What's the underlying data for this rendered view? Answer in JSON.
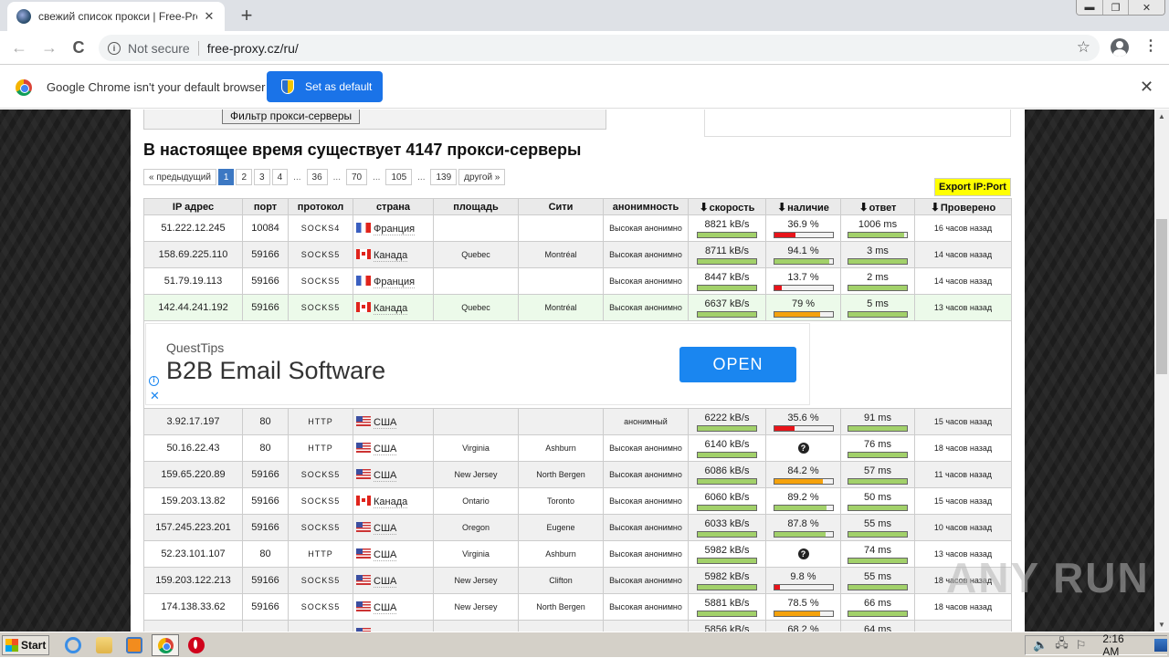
{
  "browser": {
    "tab_title": "свежий список прокси | Free-Proxy",
    "tab_close": "✕",
    "new_tab": "+",
    "window_controls": {
      "minimize": "▬",
      "restore": "❐",
      "close": "✕"
    },
    "nav": {
      "back": "←",
      "forward": "→",
      "reload": "C"
    },
    "security_label": "Not secure",
    "url": "free-proxy.cz/ru/",
    "star": "☆",
    "menu": "⋮",
    "infobar": {
      "message": "Google Chrome isn't your default browser",
      "button": "Set as default",
      "close": "✕"
    }
  },
  "page": {
    "filter_button": "Фильтр прокси-серверы",
    "title": "В настоящее время существует 4147 прокси-серверы",
    "pagination": {
      "prev": "« предыдущий",
      "items": [
        "1",
        "2",
        "3",
        "4",
        "...",
        "36",
        "...",
        "70",
        "...",
        "105",
        "...",
        "139"
      ],
      "active": "1",
      "next": "другой »"
    },
    "export_button": "Export IP:Port",
    "table": {
      "headers": [
        "IP адрес",
        "порт",
        "протокол",
        "страна",
        "площадь",
        "Сити",
        "анонимность",
        "скорость",
        "наличие",
        "ответ",
        "Проверено"
      ],
      "sort_arrow": "🡇",
      "rows": [
        {
          "ip": "51.222.12.245",
          "port": "10084",
          "protocol": "SOCKS4",
          "flag": "fr",
          "country": "Франция",
          "region": "",
          "city": "",
          "anonymity": "Высокая анонимно",
          "speed": "8821 kB/s",
          "speed_pct": 100,
          "uptime": "36.9 %",
          "uptime_pct": 36.9,
          "uptime_color": "#e8141a",
          "response": "1006 ms",
          "response_pct": 95,
          "checked": "16 часов назад",
          "style": "odd"
        },
        {
          "ip": "158.69.225.110",
          "port": "59166",
          "protocol": "SOCKS5",
          "flag": "ca",
          "country": "Канада",
          "region": "Quebec",
          "city": "Montréal",
          "anonymity": "Высокая анонимно",
          "speed": "8711 kB/s",
          "speed_pct": 100,
          "uptime": "94.1 %",
          "uptime_pct": 94.1,
          "uptime_color": "#a2d16a",
          "response": "3 ms",
          "response_pct": 100,
          "checked": "14 часов назад",
          "style": "even"
        },
        {
          "ip": "51.79.19.113",
          "port": "59166",
          "protocol": "SOCKS5",
          "flag": "fr",
          "country": "Франция",
          "region": "",
          "city": "",
          "anonymity": "Высокая анонимно",
          "speed": "8447 kB/s",
          "speed_pct": 100,
          "uptime": "13.7 %",
          "uptime_pct": 13.7,
          "uptime_color": "#e8141a",
          "response": "2 ms",
          "response_pct": 100,
          "checked": "14 часов назад",
          "style": "odd"
        },
        {
          "ip": "142.44.241.192",
          "port": "59166",
          "protocol": "SOCKS5",
          "flag": "ca",
          "country": "Канада",
          "region": "Quebec",
          "city": "Montréal",
          "anonymity": "Высокая анонимно",
          "speed": "6637 kB/s",
          "speed_pct": 100,
          "uptime": "79 %",
          "uptime_pct": 79,
          "uptime_color": "#f5a20c",
          "response": "5 ms",
          "response_pct": 100,
          "checked": "13 часов назад",
          "style": "green"
        },
        {
          "ip": "3.92.17.197",
          "port": "80",
          "protocol": "HTTP",
          "flag": "us",
          "country": "США",
          "region": "",
          "city": "",
          "anonymity": "анонимный",
          "speed": "6222 kB/s",
          "speed_pct": 100,
          "uptime": "35.6 %",
          "uptime_pct": 35.6,
          "uptime_color": "#e8141a",
          "response": "91 ms",
          "response_pct": 100,
          "checked": "15 часов назад",
          "style": "even"
        },
        {
          "ip": "50.16.22.43",
          "port": "80",
          "protocol": "HTTP",
          "flag": "us",
          "country": "США",
          "region": "Virginia",
          "city": "Ashburn",
          "anonymity": "Высокая анонимно",
          "speed": "6140 kB/s",
          "speed_pct": 100,
          "uptime": "?",
          "uptime_pct": null,
          "uptime_color": "",
          "response": "76 ms",
          "response_pct": 100,
          "checked": "18 часов назад",
          "style": "odd"
        },
        {
          "ip": "159.65.220.89",
          "port": "59166",
          "protocol": "SOCKS5",
          "flag": "us",
          "country": "США",
          "region": "New Jersey",
          "city": "North Bergen",
          "anonymity": "Высокая анонимно",
          "speed": "6086 kB/s",
          "speed_pct": 100,
          "uptime": "84.2 %",
          "uptime_pct": 84.2,
          "uptime_color": "#f5a20c",
          "response": "57 ms",
          "response_pct": 100,
          "checked": "11 часов назад",
          "style": "even"
        },
        {
          "ip": "159.203.13.82",
          "port": "59166",
          "protocol": "SOCKS5",
          "flag": "ca",
          "country": "Канада",
          "region": "Ontario",
          "city": "Toronto",
          "anonymity": "Высокая анонимно",
          "speed": "6060 kB/s",
          "speed_pct": 100,
          "uptime": "89.2 %",
          "uptime_pct": 89.2,
          "uptime_color": "#a2d16a",
          "response": "50 ms",
          "response_pct": 100,
          "checked": "15 часов назад",
          "style": "odd"
        },
        {
          "ip": "157.245.223.201",
          "port": "59166",
          "protocol": "SOCKS5",
          "flag": "us",
          "country": "США",
          "region": "Oregon",
          "city": "Eugene",
          "anonymity": "Высокая анонимно",
          "speed": "6033 kB/s",
          "speed_pct": 100,
          "uptime": "87.8 %",
          "uptime_pct": 87.8,
          "uptime_color": "#a2d16a",
          "response": "55 ms",
          "response_pct": 100,
          "checked": "10 часов назад",
          "style": "even"
        },
        {
          "ip": "52.23.101.107",
          "port": "80",
          "protocol": "HTTP",
          "flag": "us",
          "country": "США",
          "region": "Virginia",
          "city": "Ashburn",
          "anonymity": "Высокая анонимно",
          "speed": "5982 kB/s",
          "speed_pct": 100,
          "uptime": "?",
          "uptime_pct": null,
          "uptime_color": "",
          "response": "74 ms",
          "response_pct": 100,
          "checked": "13 часов назад",
          "style": "odd"
        },
        {
          "ip": "159.203.122.213",
          "port": "59166",
          "protocol": "SOCKS5",
          "flag": "us",
          "country": "США",
          "region": "New Jersey",
          "city": "Clifton",
          "anonymity": "Высокая анонимно",
          "speed": "5982 kB/s",
          "speed_pct": 100,
          "uptime": "9.8 %",
          "uptime_pct": 9.8,
          "uptime_color": "#e8141a",
          "response": "55 ms",
          "response_pct": 100,
          "checked": "18 часов назад",
          "style": "even"
        },
        {
          "ip": "174.138.33.62",
          "port": "59166",
          "protocol": "SOCKS5",
          "flag": "us",
          "country": "США",
          "region": "New Jersey",
          "city": "North Bergen",
          "anonymity": "Высокая анонимно",
          "speed": "5881 kB/s",
          "speed_pct": 100,
          "uptime": "78.5 %",
          "uptime_pct": 78.5,
          "uptime_color": "#f5a20c",
          "response": "66 ms",
          "response_pct": 100,
          "checked": "18 часов назад",
          "style": "odd"
        },
        {
          "ip": "",
          "port": "",
          "protocol": "",
          "flag": "us",
          "country": "",
          "region": "",
          "city": "",
          "anonymity": "",
          "speed": "5856 kB/s",
          "speed_pct": 100,
          "uptime": "68.2 %",
          "uptime_pct": 68.2,
          "uptime_color": "#f5a20c",
          "response": "64 ms",
          "response_pct": 100,
          "checked": "",
          "style": "even"
        }
      ],
      "ad_after_row": 4
    },
    "ad": {
      "sponsor": "QuestTips",
      "headline": "B2B Email Software",
      "button": "OPEN",
      "info": "i",
      "close": "✕"
    },
    "watermark": "ANY RUN"
  },
  "colors": {
    "bar_green": "#a2d16a",
    "bar_red": "#e8141a",
    "bar_orange": "#f5a20c",
    "export_bg": "#ffff00",
    "pager_active": "#3c78c3"
  },
  "taskbar": {
    "start": "Start",
    "clock": "2:16 AM",
    "tray_icons": [
      "speaker-icon",
      "network-icon",
      "flag-icon"
    ]
  }
}
